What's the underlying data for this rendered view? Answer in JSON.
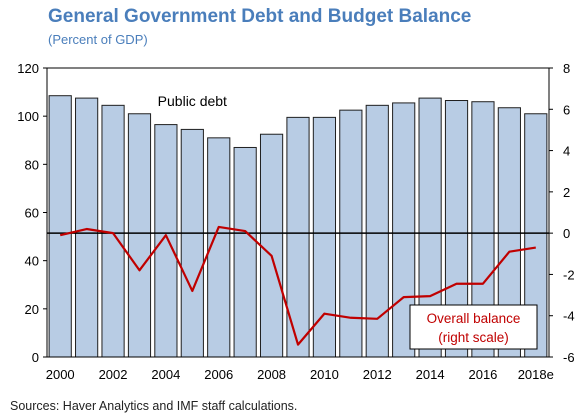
{
  "title": "General Government Debt and Budget Balance",
  "subtitle": "(Percent of GDP)",
  "source": "Sources: Haver Analytics and IMF staff calculations.",
  "colors": {
    "title": "#4a7ebb",
    "bar_fill": "#b8cce4",
    "bar_stroke": "#1f1f1f",
    "balance_line": "#c00000",
    "zero_line": "#000000"
  },
  "chart_data": {
    "type": "bar",
    "categories": [
      "2000",
      "2001",
      "2002",
      "2003",
      "2004",
      "2005",
      "2006",
      "2007",
      "2008",
      "2009",
      "2010",
      "2011",
      "2012",
      "2013",
      "2014",
      "2015",
      "2016",
      "2017",
      "2018e"
    ],
    "x_tick_labels": [
      "2000",
      "2002",
      "2004",
      "2006",
      "2008",
      "2010",
      "2012",
      "2014",
      "2016",
      "2018e"
    ],
    "left_axis": {
      "ylim": [
        0,
        120
      ],
      "ticks": [
        0,
        20,
        40,
        60,
        80,
        100,
        120
      ]
    },
    "right_axis": {
      "ylim": [
        -6,
        8
      ],
      "ticks": [
        -6,
        -4,
        -2,
        0,
        2,
        4,
        6,
        8
      ]
    },
    "grid": false,
    "series": [
      {
        "name": "Public debt",
        "axis": "left",
        "type": "bar",
        "values": [
          108.5,
          107.5,
          104.5,
          101,
          96.5,
          94.5,
          91,
          87,
          92.5,
          99.5,
          99.5,
          102.5,
          104.5,
          105.5,
          107.5,
          106.5,
          106,
          103.5,
          101
        ]
      },
      {
        "name": "Overall balance\n(right scale)",
        "axis": "right",
        "type": "line",
        "values": [
          -0.1,
          0.2,
          0.0,
          -1.8,
          -0.1,
          -2.8,
          0.3,
          0.1,
          -1.1,
          -5.4,
          -3.9,
          -4.1,
          -4.15,
          -3.1,
          -3.05,
          -2.45,
          -2.45,
          -0.9,
          -0.7
        ]
      }
    ],
    "annotations": [
      "Public debt",
      "Overall balance",
      "(right scale)"
    ],
    "balance_label_box": true
  }
}
